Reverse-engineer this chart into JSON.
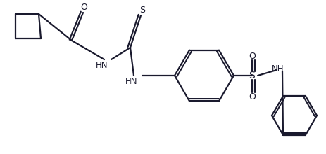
{
  "bg_color": "#ffffff",
  "line_color": "#1a1a2e",
  "line_width": 1.6,
  "font_size": 8.5,
  "figsize": [
    4.63,
    2.2
  ],
  "dpi": 100,
  "xlim": [
    0,
    463
  ],
  "ylim": [
    0,
    220
  ]
}
